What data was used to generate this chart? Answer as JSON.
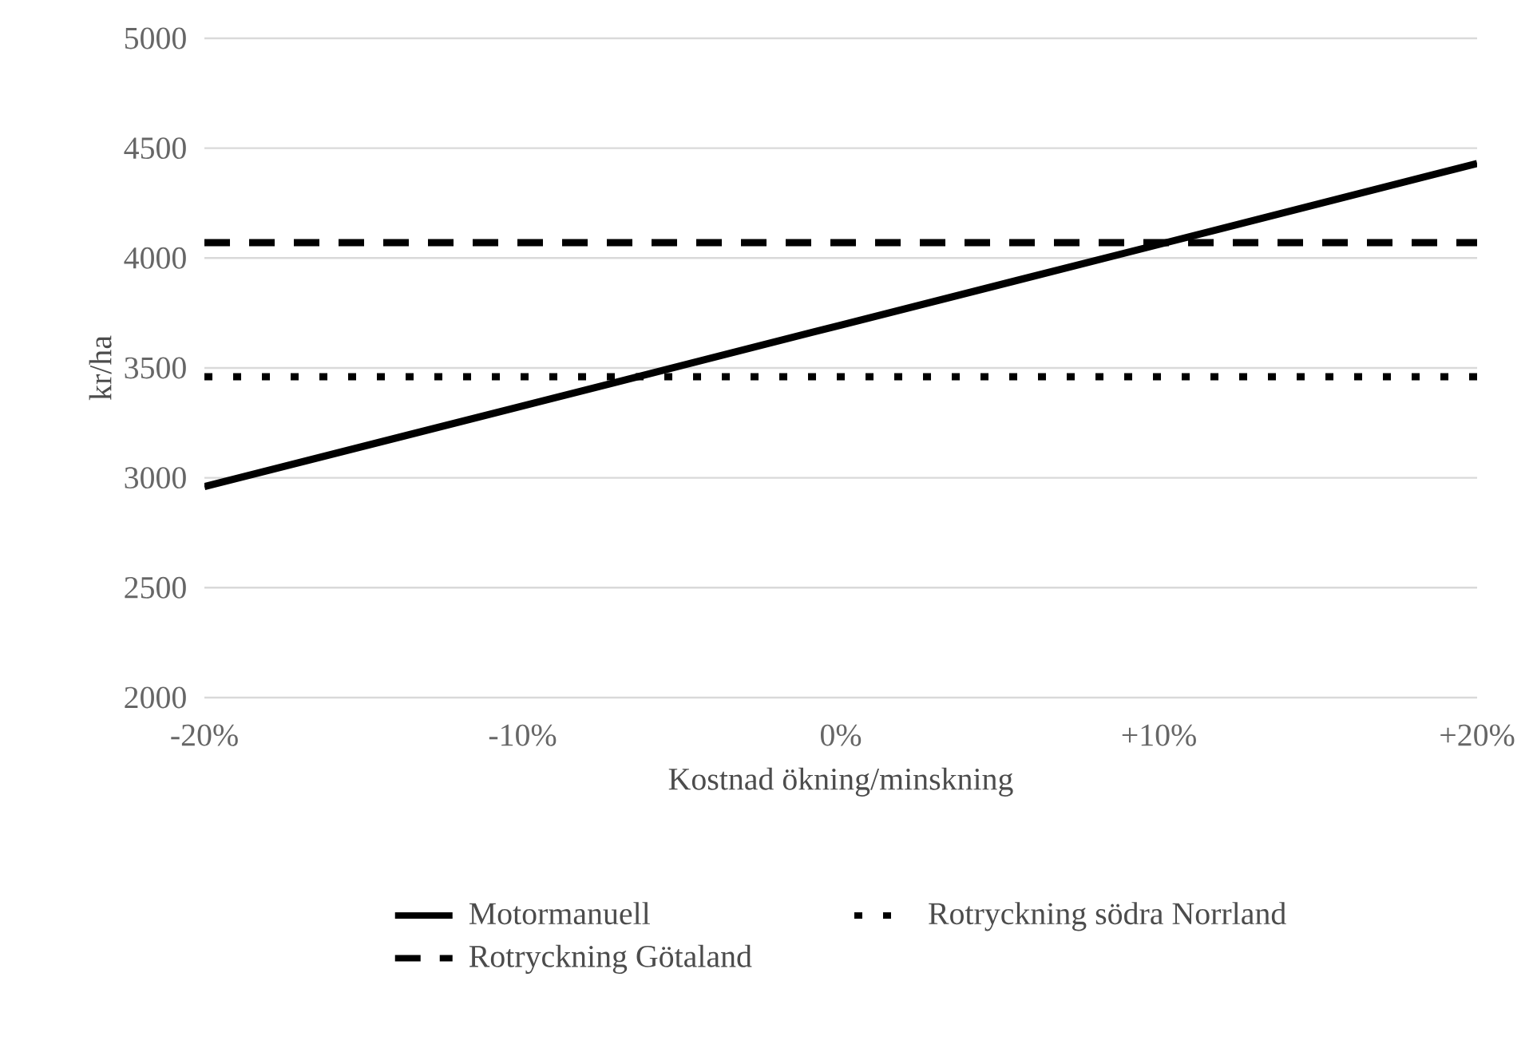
{
  "chart_data": {
    "type": "line",
    "xlabel": "Kostnad ökning/minskning",
    "ylabel": "kr/ha",
    "categories": [
      "-20%",
      "-10%",
      "0%",
      "+10%",
      "+20%"
    ],
    "series": [
      {
        "name": "Motormanuell",
        "color": "#000000",
        "line_style": "solid",
        "values": [
          2960,
          3327,
          3695,
          4062,
          4430
        ]
      },
      {
        "name": "Rotryckning södra Norrland",
        "color": "#000000",
        "line_style": "dotted",
        "values": [
          3460,
          3460,
          3460,
          3460,
          3460
        ]
      },
      {
        "name": "Rotryckning Götaland",
        "color": "#000000",
        "line_style": "dashed",
        "values": [
          4070,
          4070,
          4070,
          4070,
          4070
        ]
      }
    ],
    "ylim": [
      2000,
      5000
    ],
    "yticks": [
      2000,
      2500,
      3000,
      3500,
      4000,
      4500,
      5000
    ],
    "grid": "y",
    "legend": "bottom",
    "marker": "none"
  }
}
